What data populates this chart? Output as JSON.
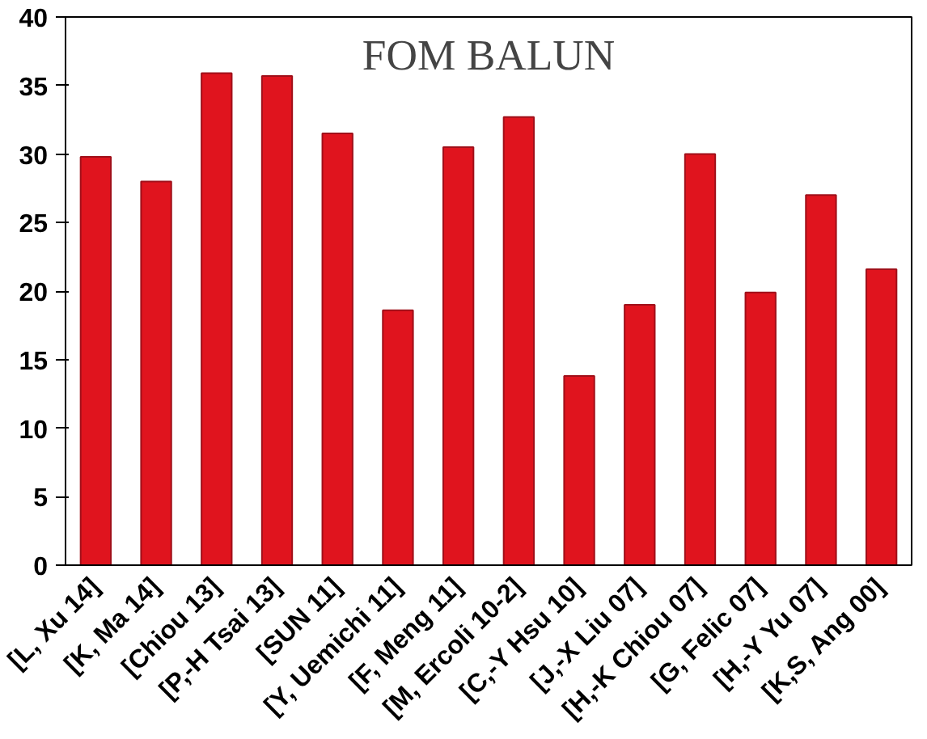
{
  "chart_data": {
    "type": "bar",
    "title": "FOM BALUN",
    "categories": [
      "[L, Xu 14]",
      "[K, Ma 14]",
      "[Chiou 13]",
      "[P,-H Tsai 13]",
      "[SUN 11]",
      "[Y, Uemichi 11]",
      "[F, Meng 11]",
      "[M, Ercoli 10-2]",
      "[C,-Y Hsu 10]",
      "[J,-X Liu 07]",
      "[H,-K Chiou 07]",
      "[G, Felic 07]",
      "[H,-Y Yu 07]",
      "[K,S, Ang 00]"
    ],
    "values": [
      29.8,
      28.0,
      35.9,
      35.7,
      31.5,
      18.6,
      30.5,
      32.7,
      13.8,
      19.0,
      30.0,
      19.9,
      27.0,
      21.6
    ],
    "color": "#e0141e",
    "ylim": [
      0,
      40
    ],
    "yticks": [
      0,
      5,
      10,
      15,
      20,
      25,
      30,
      35,
      40
    ],
    "grid": false
  }
}
